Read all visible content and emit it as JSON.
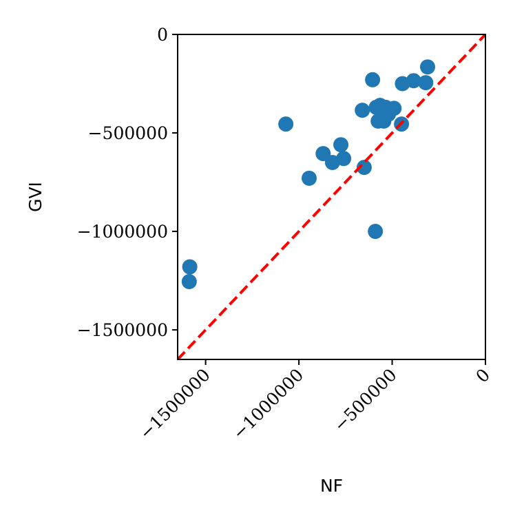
{
  "chart_data": {
    "type": "scatter",
    "xlabel": "NF",
    "ylabel": "GVI",
    "xlim": [
      -1650000,
      0
    ],
    "ylim": [
      -1650000,
      0
    ],
    "x_ticks": [
      {
        "value": -1500000,
        "label": "−1500000"
      },
      {
        "value": -1000000,
        "label": "−1000000"
      },
      {
        "value": -500000,
        "label": "−500000"
      },
      {
        "value": 0,
        "label": "0"
      }
    ],
    "y_ticks": [
      {
        "value": 0,
        "label": "0"
      },
      {
        "value": -500000,
        "label": "−500000"
      },
      {
        "value": -1000000,
        "label": "−1000000"
      },
      {
        "value": -1500000,
        "label": "−1500000"
      }
    ],
    "grid": false,
    "point_color": "#1f77b4",
    "series": [
      {
        "points": [
          [
            -1585000,
            -1180000
          ],
          [
            -1588000,
            -1255000
          ],
          [
            -1070000,
            -455000
          ],
          [
            -945000,
            -730000
          ],
          [
            -870000,
            -605000
          ],
          [
            -820000,
            -650000
          ],
          [
            -775000,
            -560000
          ],
          [
            -760000,
            -630000
          ],
          [
            -660000,
            -385000
          ],
          [
            -650000,
            -675000
          ],
          [
            -605000,
            -230000
          ],
          [
            -590000,
            -1000000
          ],
          [
            -585000,
            -370000
          ],
          [
            -575000,
            -440000
          ],
          [
            -565000,
            -360000
          ],
          [
            -555000,
            -380000
          ],
          [
            -545000,
            -440000
          ],
          [
            -535000,
            -370000
          ],
          [
            -520000,
            -405000
          ],
          [
            -510000,
            -380000
          ],
          [
            -490000,
            -375000
          ],
          [
            -450000,
            -455000
          ],
          [
            -445000,
            -250000
          ],
          [
            -385000,
            -235000
          ],
          [
            -320000,
            -245000
          ],
          [
            -310000,
            -165000
          ]
        ]
      }
    ],
    "reference_line": {
      "from": [
        -1650000,
        -1650000
      ],
      "to": [
        0,
        0
      ],
      "color": "#ff0000",
      "style": "dashed"
    }
  }
}
